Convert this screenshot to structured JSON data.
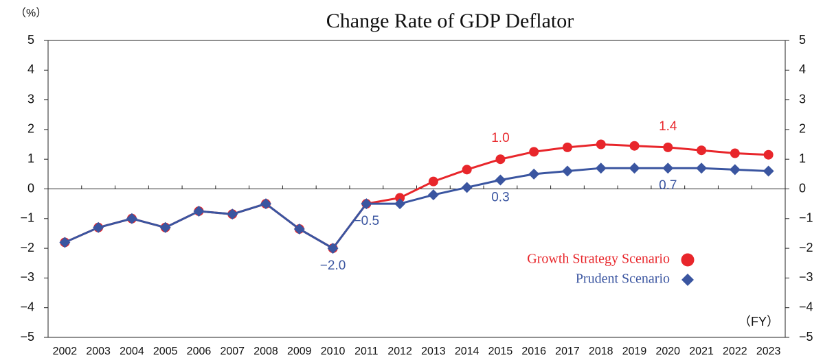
{
  "chart_data": {
    "type": "line",
    "title": "Change Rate of GDP Deflator",
    "y_unit_label": "（%）",
    "x_unit_label": "（FY）",
    "categories": [
      "2002",
      "2003",
      "2004",
      "2005",
      "2006",
      "2007",
      "2008",
      "2009",
      "2010",
      "2011",
      "2012",
      "2013",
      "2014",
      "2015",
      "2016",
      "2017",
      "2018",
      "2019",
      "2020",
      "2021",
      "2022",
      "2023"
    ],
    "series": [
      {
        "name": "Growth Strategy Scenario",
        "color": "#e8262b",
        "marker": "circle",
        "values": [
          -1.8,
          -1.3,
          -1.0,
          -1.3,
          -0.75,
          -0.85,
          -0.5,
          -1.35,
          -2.0,
          -0.5,
          -0.3,
          0.25,
          0.65,
          1.0,
          1.25,
          1.4,
          1.5,
          1.45,
          1.4,
          1.3,
          1.2,
          1.15
        ],
        "value_labels": [
          null,
          null,
          null,
          null,
          null,
          null,
          null,
          null,
          null,
          null,
          null,
          null,
          null,
          "1.0",
          null,
          null,
          null,
          null,
          "1.4",
          null,
          null,
          null
        ]
      },
      {
        "name": "Prudent Scenario",
        "color": "#3a55a0",
        "marker": "diamond",
        "values": [
          -1.8,
          -1.3,
          -1.0,
          -1.3,
          -0.75,
          -0.85,
          -0.5,
          -1.35,
          -2.0,
          -0.5,
          -0.5,
          -0.2,
          0.05,
          0.3,
          0.5,
          0.6,
          0.7,
          0.7,
          0.7,
          0.7,
          0.65,
          0.6
        ],
        "value_labels": [
          null,
          null,
          null,
          null,
          null,
          null,
          null,
          null,
          "−2.0",
          "−0.5",
          null,
          null,
          null,
          "0.3",
          null,
          null,
          null,
          null,
          "0.7",
          null,
          null,
          null
        ]
      }
    ],
    "ylim": [
      -5,
      5
    ],
    "yticks": [
      {
        "value": -5,
        "label": "−5"
      },
      {
        "value": -4,
        "label": "−4"
      },
      {
        "value": -3,
        "label": "−3"
      },
      {
        "value": -2,
        "label": "−2"
      },
      {
        "value": -1,
        "label": "−1"
      },
      0,
      1,
      2,
      3,
      4,
      5
    ],
    "y2lim": [
      -5,
      5
    ],
    "y2ticks": [
      {
        "value": -5,
        "label": "−5"
      },
      {
        "value": -4,
        "label": "−4"
      },
      {
        "value": -3,
        "label": "−3"
      },
      {
        "value": -2,
        "label": "−2"
      },
      {
        "value": -1,
        "label": "−1"
      },
      0,
      1,
      2,
      3,
      4,
      5
    ],
    "grid": false
  }
}
